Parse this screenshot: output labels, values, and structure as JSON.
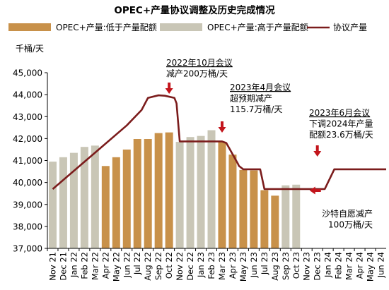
{
  "chart_data": {
    "type": "bar+line",
    "title": "OPEC+产量协议调整及历史完成情况",
    "y_unit": "千桶/天",
    "ylim": [
      37000,
      45000
    ],
    "y_ticks": [
      37000,
      38000,
      39000,
      40000,
      41000,
      42000,
      43000,
      44000,
      45000
    ],
    "y_tick_labels": [
      "37,000",
      "38,000",
      "39,000",
      "40,000",
      "41,000",
      "42,000",
      "43,000",
      "44,000",
      "45,000"
    ],
    "grid": false,
    "legend_position": "top",
    "categories": [
      "Nov 21",
      "Dec 21",
      "Jan 22",
      "Feb 22",
      "Mar 22",
      "Apr 22",
      "May 22",
      "Jun 22",
      "Jul 22",
      "Aug 22",
      "Sep 22",
      "Oct 22",
      "Nov 22",
      "Dec 22",
      "Jan 23",
      "Feb 23",
      "Mar 23",
      "Apr 23",
      "May 23",
      "Jun 23",
      "Jul 23",
      "Aug 23",
      "Sep 23",
      "Oct 23",
      "Nov 23",
      "Dec 23",
      "Jan 24",
      "Feb 24",
      "Mar 24",
      "Apr 24",
      "May 24",
      "Jun 24"
    ],
    "series": [
      {
        "name": "OPEC+产量:低于产量配额",
        "type": "bar",
        "color": "#c8914a",
        "values": [
          null,
          null,
          null,
          null,
          null,
          40750,
          41150,
          41500,
          41980,
          41980,
          42250,
          42280,
          null,
          null,
          null,
          null,
          41850,
          41270,
          40570,
          40550,
          39650,
          39400,
          null,
          null,
          null,
          null,
          null,
          null,
          null,
          null,
          null,
          null
        ]
      },
      {
        "name": "OPEC+产量:高于产量配额",
        "type": "bar",
        "color": "#c9c6b6",
        "values": [
          40950,
          41150,
          41350,
          41620,
          41680,
          null,
          null,
          null,
          null,
          null,
          null,
          null,
          41850,
          42070,
          42120,
          42380,
          null,
          null,
          null,
          null,
          null,
          null,
          39870,
          39900,
          null,
          null,
          null,
          null,
          null,
          null,
          null,
          null
        ]
      },
      {
        "name": "协议产量",
        "type": "line",
        "color": "#7b1c1c",
        "x": [
          0,
          7,
          8.4,
          9,
          10,
          10.6,
          11.5,
          11.7,
          12,
          16,
          16.4,
          17.5,
          17.6,
          18,
          19.6,
          20,
          25.7,
          26.6,
          27.6,
          31.5
        ],
        "values": [
          39700,
          42600,
          43300,
          43850,
          43970,
          43950,
          43850,
          43600,
          41870,
          41870,
          41800,
          40850,
          40750,
          40600,
          40600,
          39700,
          39700,
          40600,
          40600,
          40600
        ]
      }
    ],
    "annotations": [
      {
        "lines": [
          "2022年10月会议",
          "减产200万桶/天"
        ],
        "underline_first": true,
        "arrow": "down",
        "anchor": "Oct 22"
      },
      {
        "lines": [
          "2023年4月会议",
          "超预期减产",
          "115.7万桶/天"
        ],
        "underline_first": true,
        "arrow": "down",
        "anchor": "Mar 23"
      },
      {
        "lines": [
          "2023年6月会议",
          "下调2024年产量",
          "配额23.6万桶/天"
        ],
        "underline_first": true,
        "arrow": "down",
        "anchor": "Dec 23"
      },
      {
        "lines": [
          "沙特自愿减产",
          "100万桶/天"
        ],
        "underline_first": false,
        "arrow": "left",
        "anchor": "Jul 23"
      }
    ]
  }
}
